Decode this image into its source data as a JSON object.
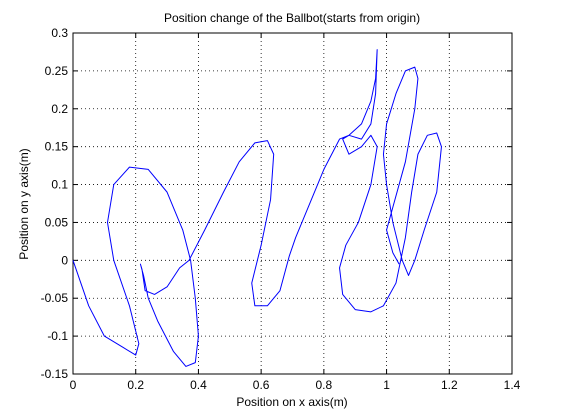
{
  "chart_data": {
    "type": "line",
    "title": "Position change of the Ballbot(starts from origin)",
    "xlabel": "Position on x axis(m)",
    "ylabel": "Position on y axis(m)",
    "x": [
      0,
      0.05,
      0.1,
      0.16,
      0.2,
      0.21,
      0.18,
      0.13,
      0.11,
      0.13,
      0.18,
      0.24,
      0.3,
      0.35,
      0.375,
      0.39,
      0.4,
      0.39,
      0.36,
      0.32,
      0.27,
      0.24,
      0.225,
      0.215,
      0.22,
      0.23,
      0.26,
      0.3,
      0.34,
      0.37,
      0.42,
      0.48,
      0.53,
      0.58,
      0.62,
      0.64,
      0.63,
      0.6,
      0.57,
      0.58,
      0.62,
      0.66,
      0.69,
      0.71,
      0.75,
      0.8,
      0.85,
      0.88,
      0.92,
      0.95,
      0.965,
      0.97,
      0.965,
      0.95,
      0.92,
      0.88,
      0.86,
      0.88,
      0.92,
      0.95,
      0.97,
      0.95,
      0.91,
      0.87,
      0.85,
      0.86,
      0.9,
      0.95,
      0.99,
      1.03,
      1.06,
      1.08,
      1.1,
      1.13,
      1.16,
      1.175,
      1.16,
      1.12,
      1.09,
      1.07,
      1.05,
      1.02,
      1.0,
      0.99,
      1.0,
      1.03,
      1.06,
      1.09,
      1.1,
      1.09,
      1.06,
      1.02,
      1.0,
      1.02,
      1.04
    ],
    "values": [
      0,
      -0.06,
      -0.1,
      -0.115,
      -0.125,
      -0.11,
      -0.06,
      0.0,
      0.05,
      0.1,
      0.123,
      0.12,
      0.09,
      0.04,
      0.0,
      -0.05,
      -0.1,
      -0.135,
      -0.14,
      -0.12,
      -0.08,
      -0.05,
      -0.02,
      -0.005,
      -0.012,
      -0.04,
      -0.045,
      -0.035,
      -0.01,
      0.0,
      0.04,
      0.09,
      0.13,
      0.155,
      0.158,
      0.14,
      0.08,
      0.02,
      -0.03,
      -0.06,
      -0.06,
      -0.04,
      0.006,
      0.03,
      0.07,
      0.12,
      0.16,
      0.165,
      0.18,
      0.21,
      0.24,
      0.278,
      0.22,
      0.18,
      0.16,
      0.165,
      0.16,
      0.14,
      0.15,
      0.165,
      0.15,
      0.1,
      0.05,
      0.02,
      -0.01,
      -0.045,
      -0.065,
      -0.068,
      -0.06,
      -0.03,
      0.03,
      0.09,
      0.14,
      0.165,
      0.168,
      0.15,
      0.09,
      0.04,
      0.0,
      -0.02,
      0.0,
      0.05,
      0.1,
      0.14,
      0.18,
      0.22,
      0.25,
      0.255,
      0.24,
      0.2,
      0.13,
      0.07,
      0.04,
      0.01,
      -0.005
    ],
    "color": "#0000ff",
    "xlim": [
      0,
      1.4
    ],
    "xticks": [
      0,
      0.2,
      0.4,
      0.6,
      0.8,
      1,
      1.2,
      1.4
    ],
    "ylim": [
      -0.15,
      0.3
    ],
    "yticks": [
      -0.15,
      -0.1,
      -0.05,
      0,
      0.05,
      0.1,
      0.15,
      0.2,
      0.25,
      0.3
    ],
    "grid": true
  }
}
